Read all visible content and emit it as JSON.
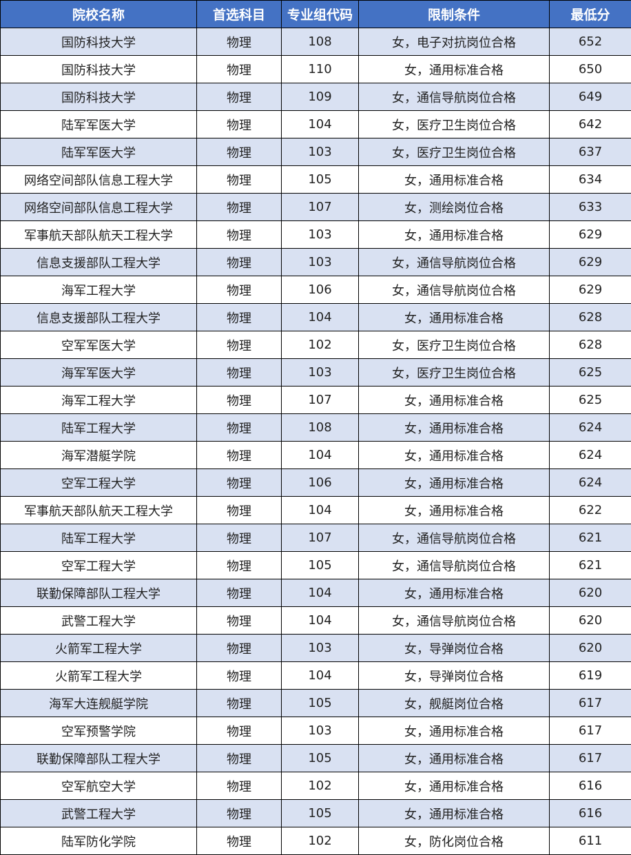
{
  "colors": {
    "header_bg": "#4472C4",
    "header_text": "#FFFFFF",
    "alt_row_bg": "#D9E1F2",
    "row_bg": "#FFFFFF",
    "border": "#000000"
  },
  "headers": [
    "院校名称",
    "首选科目",
    "专业组代码",
    "限制条件",
    "最低分"
  ],
  "rows": [
    [
      "国防科技大学",
      "物理",
      "108",
      "女，电子对抗岗位合格",
      "652"
    ],
    [
      "国防科技大学",
      "物理",
      "110",
      "女，通用标准合格",
      "650"
    ],
    [
      "国防科技大学",
      "物理",
      "109",
      "女，通信导航岗位合格",
      "649"
    ],
    [
      "陆军军医大学",
      "物理",
      "104",
      "女，医疗卫生岗位合格",
      "642"
    ],
    [
      "陆军军医大学",
      "物理",
      "103",
      "女，医疗卫生岗位合格",
      "637"
    ],
    [
      "网络空间部队信息工程大学",
      "物理",
      "105",
      "女，通用标准合格",
      "634"
    ],
    [
      "网络空间部队信息工程大学",
      "物理",
      "107",
      "女，测绘岗位合格",
      "633"
    ],
    [
      "军事航天部队航天工程大学",
      "物理",
      "103",
      "女，通用标准合格",
      "629"
    ],
    [
      "信息支援部队工程大学",
      "物理",
      "103",
      "女，通信导航岗位合格",
      "629"
    ],
    [
      "海军工程大学",
      "物理",
      "106",
      "女，通信导航岗位合格",
      "629"
    ],
    [
      "信息支援部队工程大学",
      "物理",
      "104",
      "女，通用标准合格",
      "628"
    ],
    [
      "空军军医大学",
      "物理",
      "102",
      "女，医疗卫生岗位合格",
      "628"
    ],
    [
      "海军军医大学",
      "物理",
      "103",
      "女，医疗卫生岗位合格",
      "625"
    ],
    [
      "海军工程大学",
      "物理",
      "107",
      "女，通用标准合格",
      "625"
    ],
    [
      "陆军工程大学",
      "物理",
      "108",
      "女，通用标准合格",
      "624"
    ],
    [
      "海军潜艇学院",
      "物理",
      "104",
      "女，通用标准合格",
      "624"
    ],
    [
      "空军工程大学",
      "物理",
      "106",
      "女，通用标准合格",
      "624"
    ],
    [
      "军事航天部队航天工程大学",
      "物理",
      "104",
      "女，通用标准合格",
      "622"
    ],
    [
      "陆军工程大学",
      "物理",
      "107",
      "女，通信导航岗位合格",
      "621"
    ],
    [
      "空军工程大学",
      "物理",
      "105",
      "女，通信导航岗位合格",
      "621"
    ],
    [
      "联勤保障部队工程大学",
      "物理",
      "104",
      "女，通用标准合格",
      "620"
    ],
    [
      "武警工程大学",
      "物理",
      "104",
      "女，通信导航岗位合格",
      "620"
    ],
    [
      "火箭军工程大学",
      "物理",
      "103",
      "女，导弹岗位合格",
      "620"
    ],
    [
      "火箭军工程大学",
      "物理",
      "104",
      "女，导弹岗位合格",
      "619"
    ],
    [
      "海军大连舰艇学院",
      "物理",
      "105",
      "女，舰艇岗位合格",
      "617"
    ],
    [
      "空军预警学院",
      "物理",
      "103",
      "女，通用标准合格",
      "617"
    ],
    [
      "联勤保障部队工程大学",
      "物理",
      "105",
      "女，通用标准合格",
      "617"
    ],
    [
      "空军航空大学",
      "物理",
      "102",
      "女，通用标准合格",
      "616"
    ],
    [
      "武警工程大学",
      "物理",
      "105",
      "女，通用标准合格",
      "616"
    ],
    [
      "陆军防化学院",
      "物理",
      "102",
      "女，防化岗位合格",
      "611"
    ]
  ]
}
